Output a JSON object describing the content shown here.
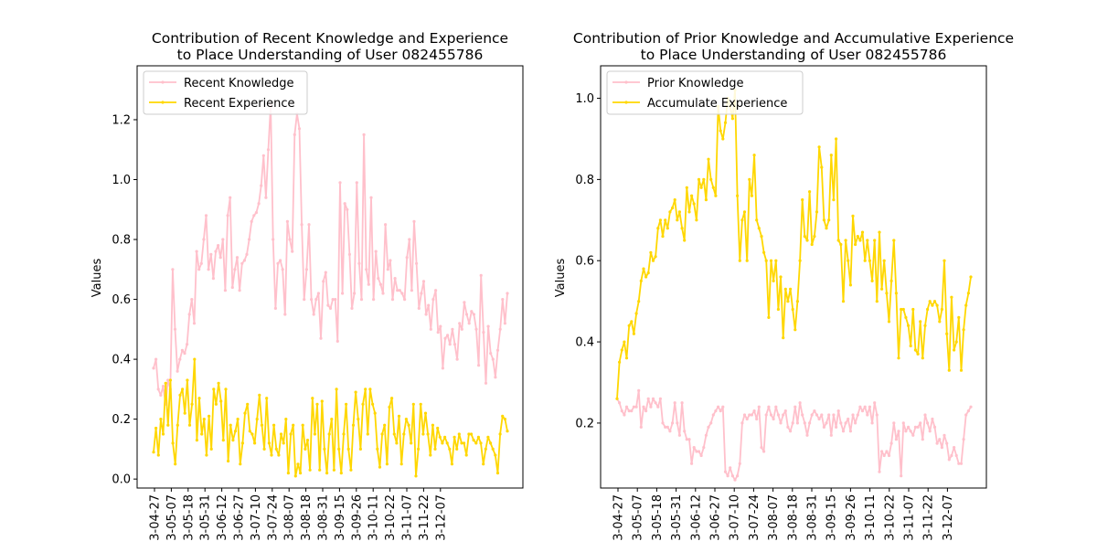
{
  "chart_data": [
    {
      "type": "line",
      "title_line1": "Contribution of Recent Knowledge and Experience",
      "title_line2": "to Place Understanding of User 082455786",
      "xlabel": "",
      "ylabel": "Values",
      "ylim": [
        -0.03,
        1.38
      ],
      "yticks": [
        "0.0",
        "0.2",
        "0.4",
        "0.6",
        "0.8",
        "1.0",
        "1.2"
      ],
      "xticks": [
        "3-04-27",
        "3-05-07",
        "3-05-18",
        "3-05-31",
        "3-06-12",
        "3-06-27",
        "3-07-10",
        "3-07-24",
        "3-08-07",
        "3-08-18",
        "3-08-31",
        "3-09-15",
        "3-09-26",
        "3-10-11",
        "3-10-22",
        "3-11-07",
        "3-11-22",
        "3-12-07"
      ],
      "legend_location": "upper-left",
      "series": [
        {
          "name": "Recent Knowledge",
          "color": "#ffc0cb",
          "values": [
            0.37,
            0.4,
            0.3,
            0.28,
            0.31,
            0.25,
            0.33,
            0.3,
            0.7,
            0.5,
            0.36,
            0.4,
            0.43,
            0.42,
            0.45,
            0.55,
            0.6,
            0.52,
            0.76,
            0.7,
            0.72,
            0.8,
            0.88,
            0.7,
            0.75,
            0.67,
            0.76,
            0.78,
            0.74,
            0.8,
            0.63,
            0.88,
            0.94,
            0.64,
            0.7,
            0.74,
            0.63,
            0.72,
            0.73,
            0.75,
            0.8,
            0.86,
            0.88,
            0.89,
            0.92,
            0.98,
            1.08,
            0.94,
            1.1,
            1.25,
            0.8,
            0.57,
            0.72,
            0.73,
            0.7,
            0.55,
            0.86,
            0.8,
            0.76,
            1.15,
            1.22,
            1.17,
            0.85,
            0.6,
            0.7,
            0.85,
            0.6,
            0.55,
            0.6,
            0.62,
            0.47,
            0.66,
            0.69,
            0.58,
            0.57,
            0.6,
            0.6,
            0.46,
            0.99,
            0.62,
            0.92,
            0.9,
            0.75,
            0.57,
            0.62,
            0.99,
            0.72,
            0.6,
            1.15,
            0.7,
            0.65,
            0.94,
            0.6,
            0.76,
            0.67,
            0.65,
            0.62,
            0.85,
            0.7,
            0.73,
            0.6,
            0.67,
            0.63,
            0.63,
            0.62,
            0.6,
            0.74,
            0.8,
            0.63,
            0.86,
            0.72,
            0.57,
            0.62,
            0.66,
            0.55,
            0.58,
            0.5,
            0.6,
            0.63,
            0.49,
            0.51,
            0.37,
            0.47,
            0.48,
            0.45,
            0.5,
            0.45,
            0.4,
            0.52,
            0.5,
            0.59,
            0.55,
            0.52,
            0.56,
            0.55,
            0.5,
            0.38,
            0.68,
            0.49,
            0.32,
            0.51,
            0.42,
            0.4,
            0.34,
            0.43,
            0.5,
            0.6,
            0.52,
            0.62
          ]
        },
        {
          "name": "Recent Experience",
          "color": "#ffd700",
          "values": [
            0.09,
            0.17,
            0.08,
            0.2,
            0.15,
            0.32,
            0.18,
            0.33,
            0.12,
            0.05,
            0.18,
            0.28,
            0.3,
            0.22,
            0.33,
            0.18,
            0.25,
            0.4,
            0.13,
            0.27,
            0.15,
            0.2,
            0.08,
            0.21,
            0.1,
            0.3,
            0.25,
            0.32,
            0.26,
            0.13,
            0.3,
            0.06,
            0.18,
            0.13,
            0.16,
            0.2,
            0.05,
            0.12,
            0.22,
            0.25,
            0.16,
            0.15,
            0.12,
            0.2,
            0.28,
            0.18,
            0.1,
            0.27,
            0.12,
            0.08,
            0.18,
            0.1,
            0.08,
            0.15,
            0.12,
            0.2,
            0.02,
            0.15,
            0.18,
            0.01,
            0.05,
            0.02,
            0.18,
            0.1,
            0.13,
            0.03,
            0.27,
            0.15,
            0.25,
            0.03,
            0.26,
            0.1,
            0.02,
            0.15,
            0.2,
            0.03,
            0.3,
            0.1,
            0.02,
            0.15,
            0.25,
            0.1,
            0.03,
            0.18,
            0.29,
            0.2,
            0.1,
            0.25,
            0.3,
            0.15,
            0.3,
            0.25,
            0.22,
            0.1,
            0.04,
            0.15,
            0.18,
            0.05,
            0.24,
            0.27,
            0.15,
            0.12,
            0.21,
            0.05,
            0.15,
            0.2,
            0.18,
            0.12,
            0.25,
            0.01,
            0.1,
            0.25,
            0.15,
            0.22,
            0.15,
            0.08,
            0.18,
            0.1,
            0.17,
            0.14,
            0.12,
            0.14,
            0.12,
            0.1,
            0.05,
            0.14,
            0.1,
            0.15,
            0.12,
            0.12,
            0.08,
            0.15,
            0.15,
            0.13,
            0.12,
            0.14,
            0.12,
            0.05,
            0.1,
            0.14,
            0.12,
            0.1,
            0.08,
            0.02,
            0.15,
            0.21,
            0.2,
            0.16
          ]
        }
      ]
    },
    {
      "type": "line",
      "title_line1": "Contribution of Prior Knowledge and Accumulative Experience",
      "title_line2": "to Place Understanding of User 082455786",
      "xlabel": "",
      "ylabel": "Values",
      "ylim": [
        0.04,
        1.08
      ],
      "yticks": [
        "0.2",
        "0.4",
        "0.6",
        "0.8",
        "1.0"
      ],
      "xticks": [
        "3-04-27",
        "3-05-07",
        "3-05-18",
        "3-05-31",
        "3-06-12",
        "3-06-27",
        "3-07-10",
        "3-07-24",
        "3-08-07",
        "3-08-18",
        "3-08-31",
        "3-09-15",
        "3-09-26",
        "3-10-11",
        "3-10-22",
        "3-11-07",
        "3-11-22",
        "3-12-07"
      ],
      "legend_location": "upper-left",
      "series": [
        {
          "name": "Prior Knowledge",
          "color": "#ffc0cb",
          "values": [
            0.26,
            0.25,
            0.23,
            0.22,
            0.24,
            0.23,
            0.23,
            0.24,
            0.24,
            0.28,
            0.19,
            0.24,
            0.23,
            0.26,
            0.24,
            0.26,
            0.25,
            0.24,
            0.26,
            0.2,
            0.19,
            0.19,
            0.18,
            0.2,
            0.25,
            0.2,
            0.17,
            0.25,
            0.18,
            0.16,
            0.16,
            0.1,
            0.14,
            0.13,
            0.13,
            0.12,
            0.14,
            0.17,
            0.19,
            0.2,
            0.22,
            0.23,
            0.24,
            0.23,
            0.24,
            0.08,
            0.07,
            0.09,
            0.07,
            0.06,
            0.07,
            0.1,
            0.2,
            0.22,
            0.21,
            0.22,
            0.22,
            0.23,
            0.21,
            0.24,
            0.14,
            0.13,
            0.22,
            0.24,
            0.22,
            0.21,
            0.24,
            0.22,
            0.2,
            0.22,
            0.23,
            0.19,
            0.18,
            0.2,
            0.24,
            0.2,
            0.25,
            0.22,
            0.2,
            0.17,
            0.2,
            0.22,
            0.23,
            0.22,
            0.21,
            0.22,
            0.19,
            0.2,
            0.22,
            0.17,
            0.22,
            0.19,
            0.23,
            0.2,
            0.18,
            0.2,
            0.21,
            0.18,
            0.22,
            0.2,
            0.22,
            0.24,
            0.23,
            0.24,
            0.22,
            0.24,
            0.2,
            0.25,
            0.22,
            0.08,
            0.13,
            0.12,
            0.13,
            0.12,
            0.15,
            0.2,
            0.16,
            0.18,
            0.07,
            0.2,
            0.18,
            0.19,
            0.18,
            0.17,
            0.19,
            0.19,
            0.2,
            0.16,
            0.22,
            0.2,
            0.18,
            0.21,
            0.19,
            0.15,
            0.16,
            0.14,
            0.17,
            0.15,
            0.11,
            0.12,
            0.14,
            0.12,
            0.1,
            0.1,
            0.16,
            0.22,
            0.23,
            0.24
          ]
        },
        {
          "name": "Accumulate Experience",
          "color": "#ffd700",
          "values": [
            0.26,
            0.35,
            0.38,
            0.4,
            0.36,
            0.44,
            0.45,
            0.42,
            0.47,
            0.5,
            0.55,
            0.58,
            0.56,
            0.57,
            0.62,
            0.6,
            0.61,
            0.68,
            0.7,
            0.66,
            0.7,
            0.68,
            0.72,
            0.73,
            0.75,
            0.7,
            0.72,
            0.68,
            0.65,
            0.78,
            0.72,
            0.76,
            0.74,
            0.7,
            0.8,
            0.78,
            0.8,
            0.75,
            0.85,
            0.8,
            0.78,
            0.76,
            0.98,
            0.92,
            0.9,
            0.94,
            1.0,
            0.98,
            0.95,
            1.02,
            0.76,
            0.6,
            0.7,
            0.72,
            0.6,
            0.8,
            0.76,
            0.86,
            0.7,
            0.68,
            0.66,
            0.62,
            0.6,
            0.46,
            0.6,
            0.55,
            0.6,
            0.48,
            0.56,
            0.41,
            0.53,
            0.5,
            0.53,
            0.48,
            0.43,
            0.5,
            0.6,
            0.75,
            0.66,
            0.65,
            0.77,
            0.64,
            0.66,
            0.72,
            0.88,
            0.83,
            0.7,
            0.68,
            0.7,
            0.86,
            0.75,
            0.9,
            0.65,
            0.64,
            0.5,
            0.65,
            0.6,
            0.54,
            0.71,
            0.64,
            0.66,
            0.65,
            0.67,
            0.6,
            0.65,
            0.6,
            0.55,
            0.65,
            0.5,
            0.67,
            0.53,
            0.6,
            0.52,
            0.45,
            0.55,
            0.65,
            0.52,
            0.36,
            0.48,
            0.48,
            0.46,
            0.44,
            0.39,
            0.48,
            0.38,
            0.37,
            0.45,
            0.36,
            0.44,
            0.48,
            0.5,
            0.49,
            0.5,
            0.49,
            0.45,
            0.48,
            0.6,
            0.42,
            0.33,
            0.51,
            0.38,
            0.4,
            0.46,
            0.33,
            0.43,
            0.49,
            0.52,
            0.56
          ]
        }
      ]
    }
  ]
}
